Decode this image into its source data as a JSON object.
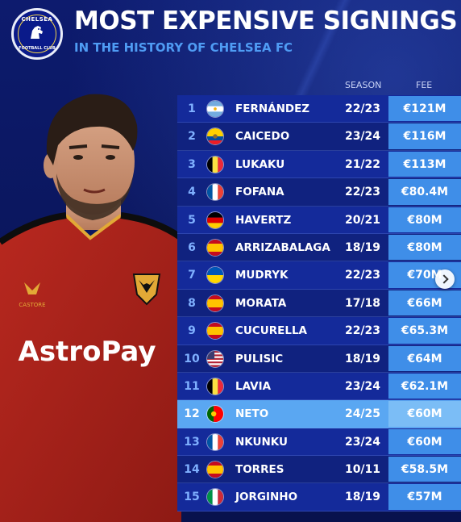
{
  "header": {
    "title": "MOST EXPENSIVE SIGNINGS",
    "subtitle": "IN THE HISTORY OF CHELSEA FC",
    "crest_top": "CHELSEA",
    "crest_bottom": "FOOTBALL CLUB"
  },
  "columns": {
    "season": "SEASON",
    "fee": "FEE"
  },
  "colors": {
    "background": "#0d1b6e",
    "accent": "#4f9cf4",
    "fee_cell": "#3f8ee8",
    "highlight_row": "#5aa7f2"
  },
  "rows": [
    {
      "rank": "1",
      "flag": "argentina-flag",
      "name": "FERNÁNDEZ",
      "season": "22/23",
      "fee": "€121M"
    },
    {
      "rank": "2",
      "flag": "ecuador-flag",
      "name": "CAICEDO",
      "season": "23/24",
      "fee": "€116M"
    },
    {
      "rank": "3",
      "flag": "belgium-flag",
      "name": "LUKAKU",
      "season": "21/22",
      "fee": "€113M"
    },
    {
      "rank": "4",
      "flag": "france-flag",
      "name": "FOFANA",
      "season": "22/23",
      "fee": "€80.4M"
    },
    {
      "rank": "5",
      "flag": "germany-flag",
      "name": "HAVERTZ",
      "season": "20/21",
      "fee": "€80M"
    },
    {
      "rank": "6",
      "flag": "spain-flag",
      "name": "ARRIZABALAGA",
      "season": "18/19",
      "fee": "€80M"
    },
    {
      "rank": "7",
      "flag": "ukraine-flag",
      "name": "MUDRYK",
      "season": "22/23",
      "fee": "€70M"
    },
    {
      "rank": "8",
      "flag": "spain-flag",
      "name": "MORATA",
      "season": "17/18",
      "fee": "€66M"
    },
    {
      "rank": "9",
      "flag": "spain-flag",
      "name": "CUCURELLA",
      "season": "22/23",
      "fee": "€65.3M"
    },
    {
      "rank": "10",
      "flag": "usa-flag",
      "name": "PULISIC",
      "season": "18/19",
      "fee": "€64M"
    },
    {
      "rank": "11",
      "flag": "belgium-flag",
      "name": "LAVIA",
      "season": "23/24",
      "fee": "€62.1M"
    },
    {
      "rank": "12",
      "flag": "portugal-flag",
      "name": "NETO",
      "season": "24/25",
      "fee": "€60M",
      "highlight": true
    },
    {
      "rank": "13",
      "flag": "france-flag",
      "name": "NKUNKU",
      "season": "23/24",
      "fee": "€60M"
    },
    {
      "rank": "14",
      "flag": "spain-flag",
      "name": "TORRES",
      "season": "10/11",
      "fee": "€58.5M"
    },
    {
      "rank": "15",
      "flag": "italy-flag",
      "name": "JORGINHO",
      "season": "18/19",
      "fee": "€57M"
    }
  ],
  "player": {
    "sponsor": "AstroPay",
    "kit_brand": "CASTORE"
  }
}
